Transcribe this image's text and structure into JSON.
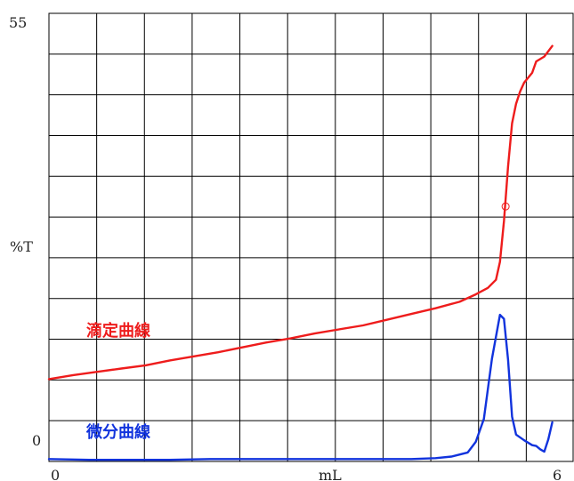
{
  "chart_data": {
    "type": "line",
    "title": "",
    "xlabel": "mL",
    "ylabel": "%T",
    "x_tick_labels": [
      "0",
      "6"
    ],
    "y_tick_labels": [
      "0",
      "55"
    ],
    "xlim": [
      0,
      6
    ],
    "ylim": [
      0,
      55
    ],
    "grid": true,
    "colors": {
      "titration": "#ee1c1c",
      "derivative": "#1133dd",
      "grid": "#000000"
    },
    "marker": {
      "series": "titration",
      "x": 5.67,
      "y": 31.3,
      "shape": "circle"
    },
    "series": [
      {
        "name": "滴定曲線",
        "color": "#ee1c1c",
        "x": [
          0,
          0.3,
          0.6,
          0.9,
          1.2,
          1.5,
          1.8,
          2.1,
          2.4,
          2.7,
          3.0,
          3.3,
          3.6,
          3.9,
          4.2,
          4.5,
          4.8,
          5.1,
          5.3,
          5.45,
          5.55,
          5.6,
          5.65,
          5.7,
          5.75,
          5.8,
          5.85,
          5.9,
          6.0,
          6.05,
          6.15,
          6.25
        ],
        "y": [
          10.1,
          10.6,
          11.0,
          11.4,
          11.8,
          12.4,
          12.9,
          13.4,
          14.0,
          14.6,
          15.1,
          15.7,
          16.2,
          16.7,
          17.4,
          18.1,
          18.8,
          19.6,
          20.5,
          21.3,
          22.3,
          24.5,
          29.5,
          36.2,
          41.5,
          43.9,
          45.4,
          46.5,
          47.7,
          49.1,
          49.7,
          51.0
        ]
      },
      {
        "name": "微分曲線",
        "color": "#1133dd",
        "x": [
          0,
          0.5,
          1.0,
          1.5,
          2.0,
          2.5,
          3.0,
          3.5,
          4.0,
          4.5,
          4.8,
          5.0,
          5.2,
          5.3,
          5.4,
          5.5,
          5.6,
          5.65,
          5.7,
          5.75,
          5.8,
          5.9,
          6.0,
          6.05,
          6.1,
          6.15,
          6.2,
          6.25
        ],
        "y": [
          0.3,
          0.2,
          0.2,
          0.2,
          0.3,
          0.3,
          0.3,
          0.3,
          0.3,
          0.3,
          0.4,
          0.6,
          1.1,
          2.4,
          5.2,
          12.6,
          18.0,
          17.5,
          12.5,
          5.5,
          3.3,
          2.6,
          2.0,
          1.9,
          1.5,
          1.2,
          2.7,
          4.8
        ]
      }
    ]
  }
}
